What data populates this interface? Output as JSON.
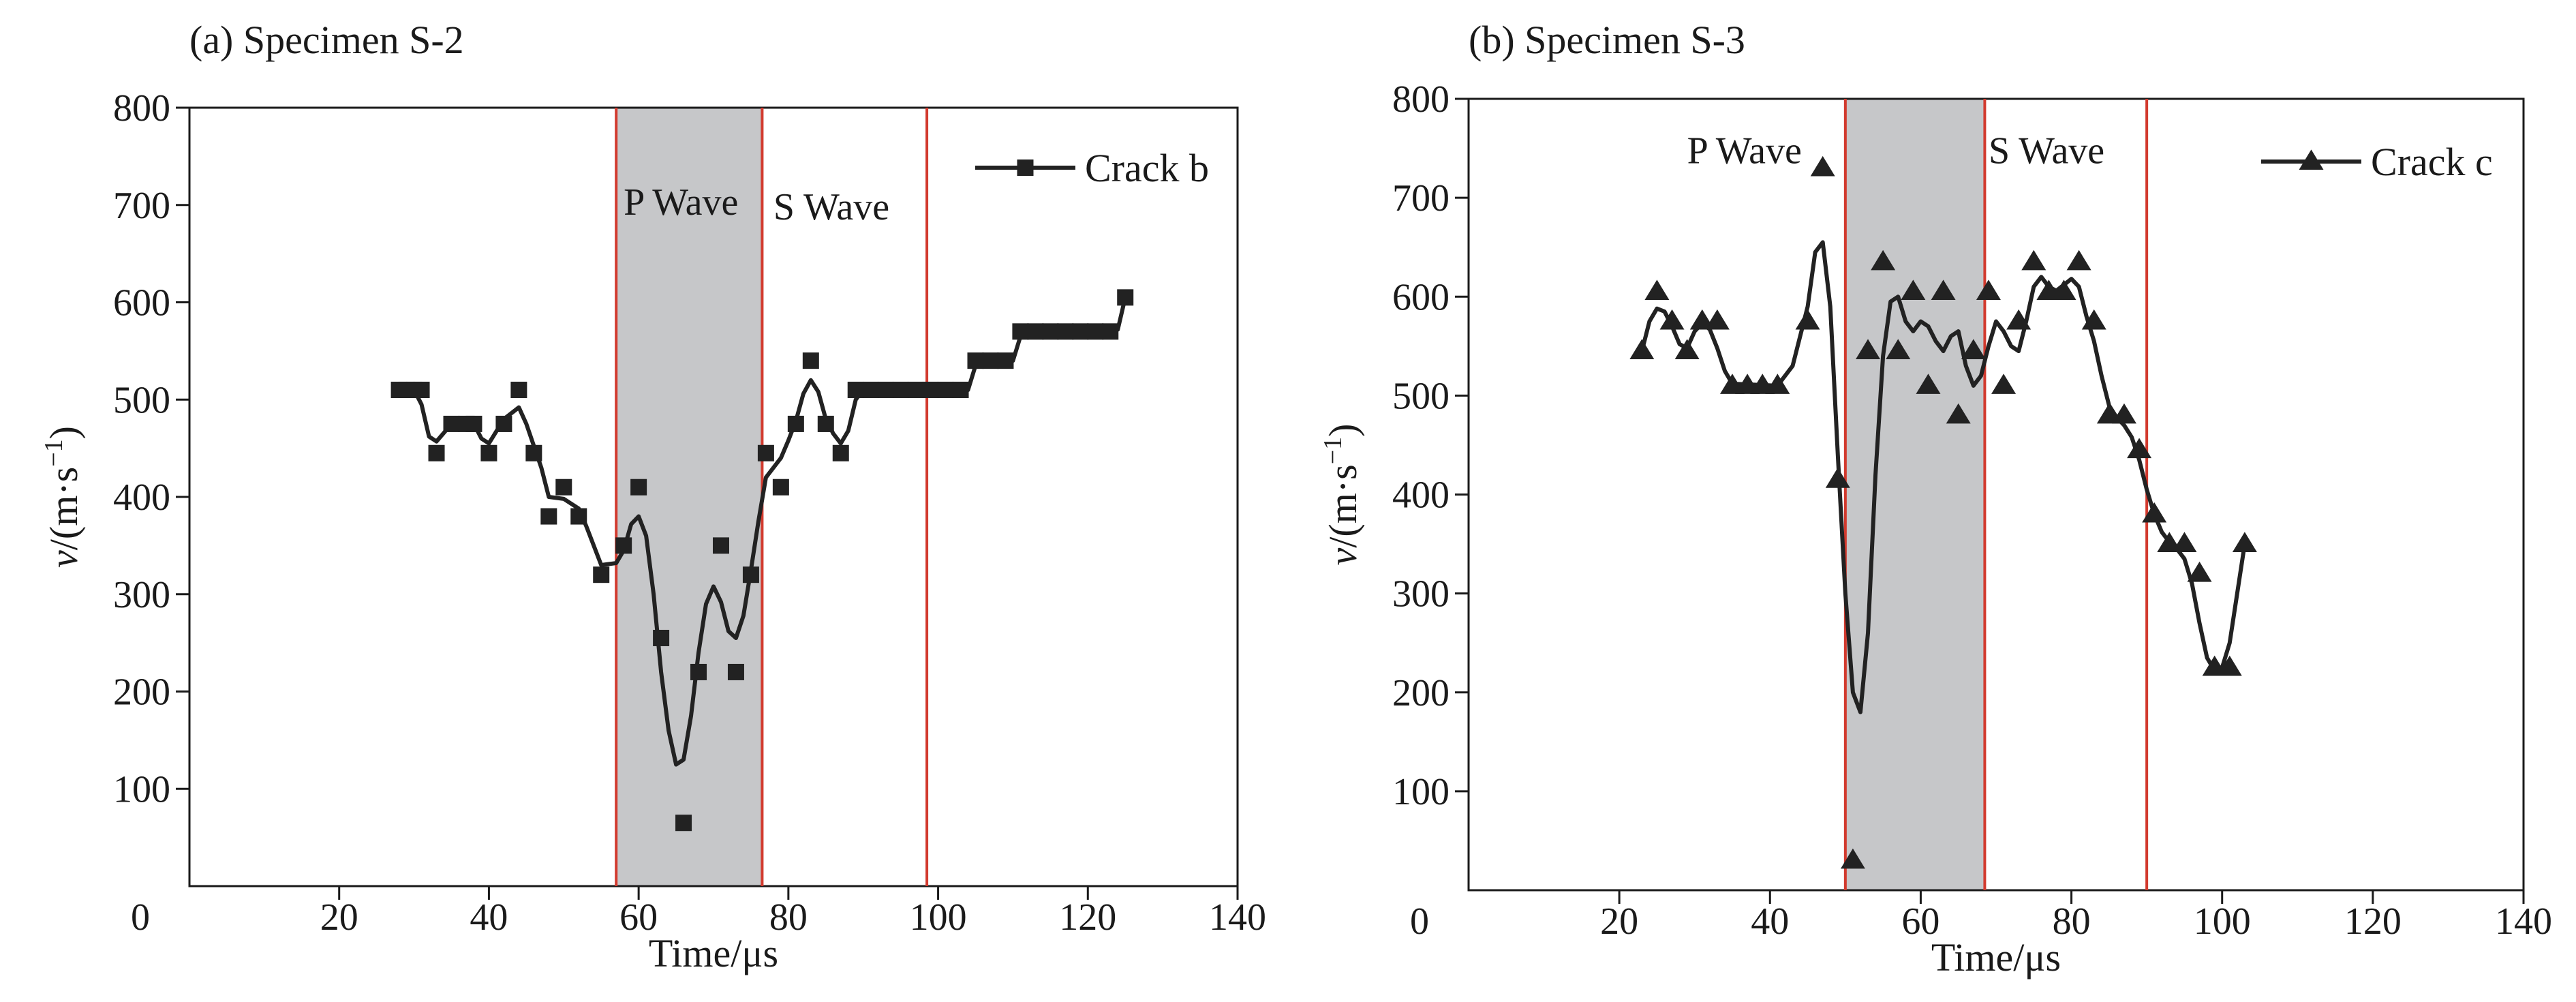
{
  "chart_data": [
    {
      "type": "line",
      "title": "(a) Specimen S-2",
      "xlabel": "Time/μs",
      "ylabel_main": "v",
      "ylabel_unit": "/(m·s",
      "ylabel_exp": "−1",
      "ylabel_close": ")",
      "xlim": [
        0,
        140
      ],
      "ylim": [
        0,
        800
      ],
      "xticks": [
        0,
        20,
        40,
        60,
        80,
        100,
        120,
        140
      ],
      "yticks": [
        100,
        200,
        300,
        400,
        500,
        600,
        700,
        800
      ],
      "origin_label": "0",
      "marker": "square",
      "legend": {
        "label": "Crack b",
        "position": "top-right"
      },
      "shaded_region": [
        57,
        76.5
      ],
      "vlines": [
        57,
        76.5,
        98.5
      ],
      "annotations": [
        {
          "text": "P Wave",
          "x": 58,
          "y": 690
        },
        {
          "text": "S Wave",
          "x": 78,
          "y": 685
        }
      ],
      "series": [
        {
          "name": "Crack b",
          "points": [
            [
              28,
              510
            ],
            [
              29,
              510
            ],
            [
              30,
              510
            ],
            [
              31,
              510
            ],
            [
              33,
              445
            ],
            [
              35,
              475
            ],
            [
              37,
              475
            ],
            [
              38,
              475
            ],
            [
              40,
              445
            ],
            [
              42,
              475
            ],
            [
              44,
              510
            ],
            [
              46,
              445
            ],
            [
              48,
              380
            ],
            [
              50,
              410
            ],
            [
              52,
              380
            ],
            [
              55,
              320
            ],
            [
              58,
              350
            ],
            [
              60,
              410
            ],
            [
              63,
              255
            ],
            [
              66,
              65
            ],
            [
              68,
              220
            ],
            [
              71,
              350
            ],
            [
              73,
              220
            ],
            [
              75,
              320
            ],
            [
              77,
              445
            ],
            [
              79,
              410
            ],
            [
              81,
              475
            ],
            [
              83,
              540
            ],
            [
              85,
              475
            ],
            [
              87,
              445
            ],
            [
              89,
              510
            ],
            [
              91,
              510
            ],
            [
              93,
              510
            ],
            [
              95,
              510
            ],
            [
              97,
              510
            ],
            [
              99,
              510
            ],
            [
              101,
              510
            ],
            [
              103,
              510
            ],
            [
              105,
              540
            ],
            [
              107,
              540
            ],
            [
              109,
              540
            ],
            [
              111,
              570
            ],
            [
              113,
              570
            ],
            [
              115,
              570
            ],
            [
              117,
              570
            ],
            [
              119,
              570
            ],
            [
              121,
              570
            ],
            [
              123,
              570
            ],
            [
              125,
              605
            ]
          ],
          "curve": [
            [
              28,
              510
            ],
            [
              30,
              510
            ],
            [
              31,
              495
            ],
            [
              32,
              462
            ],
            [
              33,
              457
            ],
            [
              35,
              475
            ],
            [
              38,
              475
            ],
            [
              39,
              460
            ],
            [
              40,
              455
            ],
            [
              42,
              480
            ],
            [
              44,
              492
            ],
            [
              45,
              475
            ],
            [
              47,
              430
            ],
            [
              48,
              400
            ],
            [
              50,
              398
            ],
            [
              52,
              388
            ],
            [
              53,
              370
            ],
            [
              55,
              330
            ],
            [
              57,
              332
            ],
            [
              58,
              345
            ],
            [
              59,
              372
            ],
            [
              60,
              380
            ],
            [
              61,
              360
            ],
            [
              62,
              300
            ],
            [
              63,
              220
            ],
            [
              64,
              160
            ],
            [
              65,
              125
            ],
            [
              66,
              130
            ],
            [
              67,
              175
            ],
            [
              68,
              240
            ],
            [
              69,
              290
            ],
            [
              70,
              308
            ],
            [
              71,
              292
            ],
            [
              72,
              262
            ],
            [
              73,
              255
            ],
            [
              74,
              278
            ],
            [
              75,
              325
            ],
            [
              76,
              375
            ],
            [
              77,
              420
            ],
            [
              78,
              430
            ],
            [
              79,
              440
            ],
            [
              80,
              458
            ],
            [
              81,
              478
            ],
            [
              82,
              506
            ],
            [
              83,
              520
            ],
            [
              84,
              508
            ],
            [
              85,
              480
            ],
            [
              86,
              465
            ],
            [
              87,
              455
            ],
            [
              88,
              468
            ],
            [
              89,
              500
            ],
            [
              90,
              510
            ],
            [
              104,
              510
            ],
            [
              105,
              535
            ],
            [
              110,
              540
            ],
            [
              111,
              565
            ],
            [
              124,
              572
            ],
            [
              125,
              605
            ]
          ]
        }
      ]
    },
    {
      "type": "line",
      "title": "(b) Specimen S-3",
      "xlabel": "Time/μs",
      "ylabel_main": "v",
      "ylabel_unit": "/(m·s",
      "ylabel_exp": "−1",
      "ylabel_close": ")",
      "xlim": [
        0,
        140
      ],
      "ylim": [
        0,
        800
      ],
      "xticks": [
        0,
        20,
        40,
        60,
        80,
        100,
        120,
        140
      ],
      "yticks": [
        100,
        200,
        300,
        400,
        500,
        600,
        700,
        800
      ],
      "origin_label": "0",
      "marker": "triangle",
      "legend": {
        "label": "Crack c",
        "position": "top-right"
      },
      "shaded_region": [
        50,
        68.5
      ],
      "vlines": [
        50,
        68.5,
        90
      ],
      "annotations": [
        {
          "text": "P Wave",
          "x": 29,
          "y": 735
        },
        {
          "text": "S Wave",
          "x": 69,
          "y": 735
        }
      ],
      "series": [
        {
          "name": "Crack c",
          "points": [
            [
              23,
              545
            ],
            [
              25,
              605
            ],
            [
              27,
              575
            ],
            [
              29,
              545
            ],
            [
              31,
              575
            ],
            [
              33,
              575
            ],
            [
              35,
              510
            ],
            [
              37,
              510
            ],
            [
              39,
              510
            ],
            [
              41,
              510
            ],
            [
              45,
              575
            ],
            [
              47,
              730
            ],
            [
              49,
              415
            ],
            [
              51,
              30
            ],
            [
              53,
              545
            ],
            [
              55,
              635
            ],
            [
              57,
              545
            ],
            [
              59,
              605
            ],
            [
              61,
              510
            ],
            [
              63,
              605
            ],
            [
              65,
              480
            ],
            [
              67,
              545
            ],
            [
              69,
              605
            ],
            [
              71,
              510
            ],
            [
              73,
              575
            ],
            [
              75,
              635
            ],
            [
              77,
              605
            ],
            [
              79,
              605
            ],
            [
              81,
              635
            ],
            [
              83,
              575
            ],
            [
              85,
              480
            ],
            [
              87,
              480
            ],
            [
              89,
              445
            ],
            [
              91,
              380
            ],
            [
              93,
              350
            ],
            [
              95,
              350
            ],
            [
              97,
              320
            ],
            [
              99,
              225
            ],
            [
              101,
              225
            ],
            [
              103,
              350
            ]
          ],
          "curve": [
            [
              23,
              545
            ],
            [
              24,
              575
            ],
            [
              25,
              588
            ],
            [
              26,
              585
            ],
            [
              27,
              570
            ],
            [
              28,
              552
            ],
            [
              29,
              548
            ],
            [
              30,
              565
            ],
            [
              31,
              573
            ],
            [
              32,
              567
            ],
            [
              33,
              548
            ],
            [
              34,
              525
            ],
            [
              35,
              512
            ],
            [
              41,
              510
            ],
            [
              43,
              530
            ],
            [
              45,
              590
            ],
            [
              46,
              645
            ],
            [
              47,
              655
            ],
            [
              48,
              590
            ],
            [
              49,
              440
            ],
            [
              50,
              300
            ],
            [
              51,
              200
            ],
            [
              52,
              180
            ],
            [
              53,
              260
            ],
            [
              54,
              420
            ],
            [
              55,
              540
            ],
            [
              56,
              595
            ],
            [
              57,
              600
            ],
            [
              58,
              575
            ],
            [
              59,
              565
            ],
            [
              60,
              575
            ],
            [
              61,
              570
            ],
            [
              62,
              555
            ],
            [
              63,
              545
            ],
            [
              64,
              560
            ],
            [
              65,
              565
            ],
            [
              66,
              530
            ],
            [
              67,
              510
            ],
            [
              68,
              520
            ],
            [
              69,
              550
            ],
            [
              70,
              575
            ],
            [
              71,
              565
            ],
            [
              72,
              550
            ],
            [
              73,
              545
            ],
            [
              74,
              575
            ],
            [
              75,
              610
            ],
            [
              76,
              620
            ],
            [
              77,
              610
            ],
            [
              78,
              606
            ],
            [
              79,
              612
            ],
            [
              80,
              618
            ],
            [
              81,
              610
            ],
            [
              82,
              580
            ],
            [
              83,
              555
            ],
            [
              84,
              520
            ],
            [
              85,
              490
            ],
            [
              86,
              478
            ],
            [
              87,
              470
            ],
            [
              88,
              458
            ],
            [
              89,
              435
            ],
            [
              90,
              405
            ],
            [
              91,
              380
            ],
            [
              92,
              362
            ],
            [
              93,
              352
            ],
            [
              94,
              345
            ],
            [
              95,
              335
            ],
            [
              96,
              310
            ],
            [
              97,
              270
            ],
            [
              98,
              235
            ],
            [
              99,
              222
            ],
            [
              100,
              225
            ],
            [
              101,
              250
            ],
            [
              102,
              300
            ],
            [
              103,
              350
            ]
          ]
        }
      ]
    }
  ]
}
